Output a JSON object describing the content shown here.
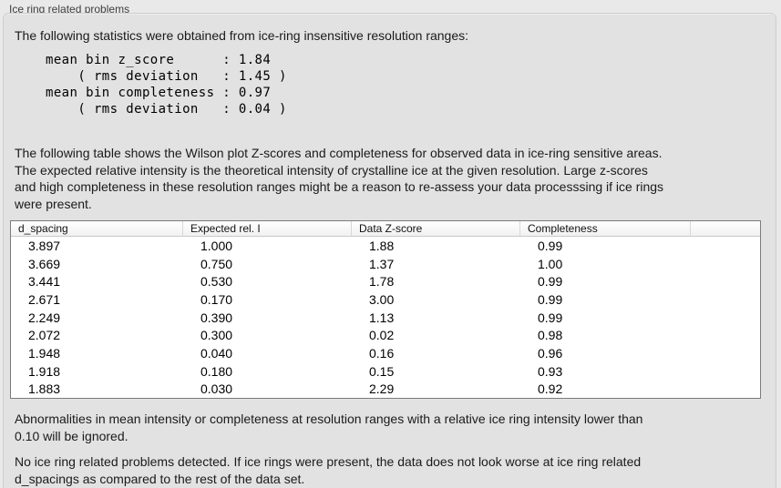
{
  "window": {
    "title": "Ice ring related problems"
  },
  "panel": {
    "intro": "The following statistics were obtained from ice-ring insensitive resolution ranges:",
    "stats_block": "mean bin z_score      : 1.84\n    ( rms deviation   : 1.45 )\nmean bin completeness : 0.97\n    ( rms deviation   : 0.04 )",
    "description": "The following table shows the Wilson plot Z-scores and completeness for observed data in ice-ring sensitive areas.\nThe expected relative intensity is the theoretical intensity of crystalline ice at the given resolution. Large z-scores\nand high completeness in these resolution ranges might be a reason to re-assess your data processsing if ice rings\nwere present.",
    "table": {
      "columns": [
        "d_spacing",
        "Expected rel. I",
        "Data Z-score",
        "Completeness"
      ],
      "rows": [
        [
          "3.897",
          "1.000",
          "1.88",
          "0.99"
        ],
        [
          "3.669",
          "0.750",
          "1.37",
          "1.00"
        ],
        [
          "3.441",
          "0.530",
          "1.78",
          "0.99"
        ],
        [
          "2.671",
          "0.170",
          "3.00",
          "0.99"
        ],
        [
          "2.249",
          "0.390",
          "1.13",
          "0.99"
        ],
        [
          "2.072",
          "0.300",
          "0.02",
          "0.98"
        ],
        [
          "1.948",
          "0.040",
          "0.16",
          "0.96"
        ],
        [
          "1.918",
          "0.180",
          "0.15",
          "0.93"
        ],
        [
          "1.883",
          "0.030",
          "2.29",
          "0.92"
        ]
      ]
    },
    "note_ignore": "Abnormalities in mean intensity or completeness at resolution ranges with a relative ice ring intensity lower than\n0.10 will be ignored.",
    "conclusion": "No ice ring related problems detected. If ice rings were present, the data does not look worse at ice ring related\nd_spacings as compared to the rest of the data set."
  },
  "colors": {
    "page-bg": "#e9e9e9",
    "panel-bg": "#e2e2e2",
    "panel-border": "#cdcdcd",
    "text": "#1a1a1a",
    "title": "#3e3e3e",
    "table-border": "#7b7b7b",
    "header-sep": "#d8d8d8",
    "header-bottom": "#c9c9c9"
  }
}
